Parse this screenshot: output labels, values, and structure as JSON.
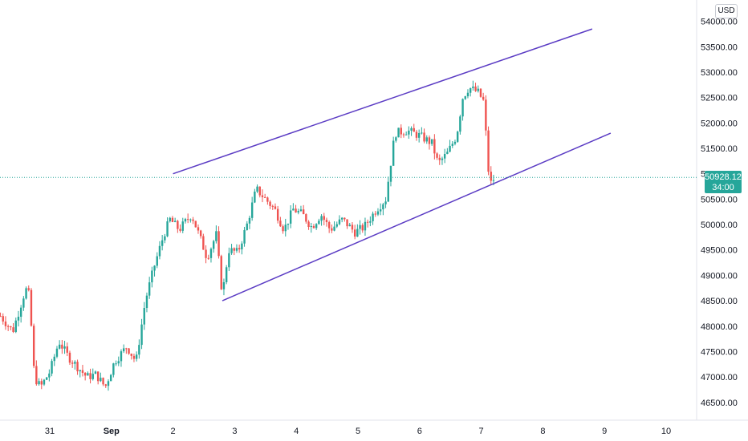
{
  "currency": "USD",
  "last_price": "50928.12",
  "countdown": "34:00",
  "colors": {
    "up": "#26a69a",
    "down": "#ef5350",
    "channel": "#5b3cc4",
    "price_line": "#26a69a"
  },
  "chart_data": {
    "type": "candlestick",
    "title": "",
    "xlabel": "",
    "ylabel": "",
    "ylim": [
      46150,
      54420
    ],
    "y_ticks": [
      46500,
      47000,
      47500,
      48000,
      48500,
      49000,
      49500,
      50000,
      50500,
      51000,
      51500,
      52000,
      52500,
      53000,
      53500,
      54000
    ],
    "y_tick_labels": [
      "46500.00",
      "47000.00",
      "47500.00",
      "48000.00",
      "48500.00",
      "49000.00",
      "49500.00",
      "50000.00",
      "50500.00",
      "51000.00",
      "51500.00",
      "52000.00",
      "52500.00",
      "53000.00",
      "53500.00",
      "54000.00"
    ],
    "x_ticks": [
      {
        "label": "31",
        "day": 0,
        "bold": false
      },
      {
        "label": "Sep",
        "day": 1,
        "bold": true
      },
      {
        "label": "2",
        "day": 2,
        "bold": false
      },
      {
        "label": "3",
        "day": 3,
        "bold": false
      },
      {
        "label": "4",
        "day": 4,
        "bold": false
      },
      {
        "label": "5",
        "day": 5,
        "bold": false
      },
      {
        "label": "6",
        "day": 6,
        "bold": false
      },
      {
        "label": "7",
        "day": 7,
        "bold": false
      },
      {
        "label": "8",
        "day": 8,
        "bold": false
      },
      {
        "label": "9",
        "day": 9,
        "bold": false
      },
      {
        "label": "10",
        "day": 10,
        "bold": false
      }
    ],
    "anchors": [
      [
        -0.8,
        48200
      ],
      [
        -0.6,
        47900
      ],
      [
        -0.4,
        48700
      ],
      [
        -0.35,
        48750
      ],
      [
        -0.3,
        48000
      ],
      [
        -0.25,
        47000
      ],
      [
        -0.15,
        46800
      ],
      [
        0.0,
        47100
      ],
      [
        0.15,
        47700
      ],
      [
        0.3,
        47400
      ],
      [
        0.45,
        47200
      ],
      [
        0.6,
        47000
      ],
      [
        0.75,
        47050
      ],
      [
        0.9,
        46800
      ],
      [
        1.05,
        47300
      ],
      [
        1.25,
        47600
      ],
      [
        1.4,
        47300
      ],
      [
        1.55,
        48500
      ],
      [
        1.7,
        49200
      ],
      [
        1.85,
        49800
      ],
      [
        1.95,
        50100
      ],
      [
        2.1,
        49900
      ],
      [
        2.3,
        50200
      ],
      [
        2.45,
        49700
      ],
      [
        2.55,
        49350
      ],
      [
        2.7,
        49800
      ],
      [
        2.8,
        48600
      ],
      [
        2.9,
        49500
      ],
      [
        3.05,
        49450
      ],
      [
        3.2,
        50000
      ],
      [
        3.35,
        50700
      ],
      [
        3.5,
        50500
      ],
      [
        3.65,
        50300
      ],
      [
        3.8,
        49900
      ],
      [
        3.95,
        50300
      ],
      [
        4.1,
        50200
      ],
      [
        4.25,
        49950
      ],
      [
        4.4,
        50200
      ],
      [
        4.55,
        49900
      ],
      [
        4.75,
        50100
      ],
      [
        4.95,
        49850
      ],
      [
        5.1,
        49950
      ],
      [
        5.3,
        50300
      ],
      [
        5.45,
        50500
      ],
      [
        5.6,
        51800
      ],
      [
        5.8,
        51850
      ],
      [
        6.0,
        51750
      ],
      [
        6.2,
        51600
      ],
      [
        6.3,
        51200
      ],
      [
        6.45,
        51400
      ],
      [
        6.6,
        51750
      ],
      [
        6.7,
        52500
      ],
      [
        6.8,
        52700
      ],
      [
        6.95,
        52600
      ],
      [
        7.05,
        52400
      ],
      [
        7.1,
        51200
      ],
      [
        7.15,
        50800
      ],
      [
        7.22,
        50930
      ]
    ],
    "channel_upper": [
      [
        2.0,
        51000
      ],
      [
        8.8,
        53850
      ]
    ],
    "channel_lower": [
      [
        2.8,
        48500
      ],
      [
        9.1,
        51800
      ]
    ],
    "last_value": 50928.12
  }
}
